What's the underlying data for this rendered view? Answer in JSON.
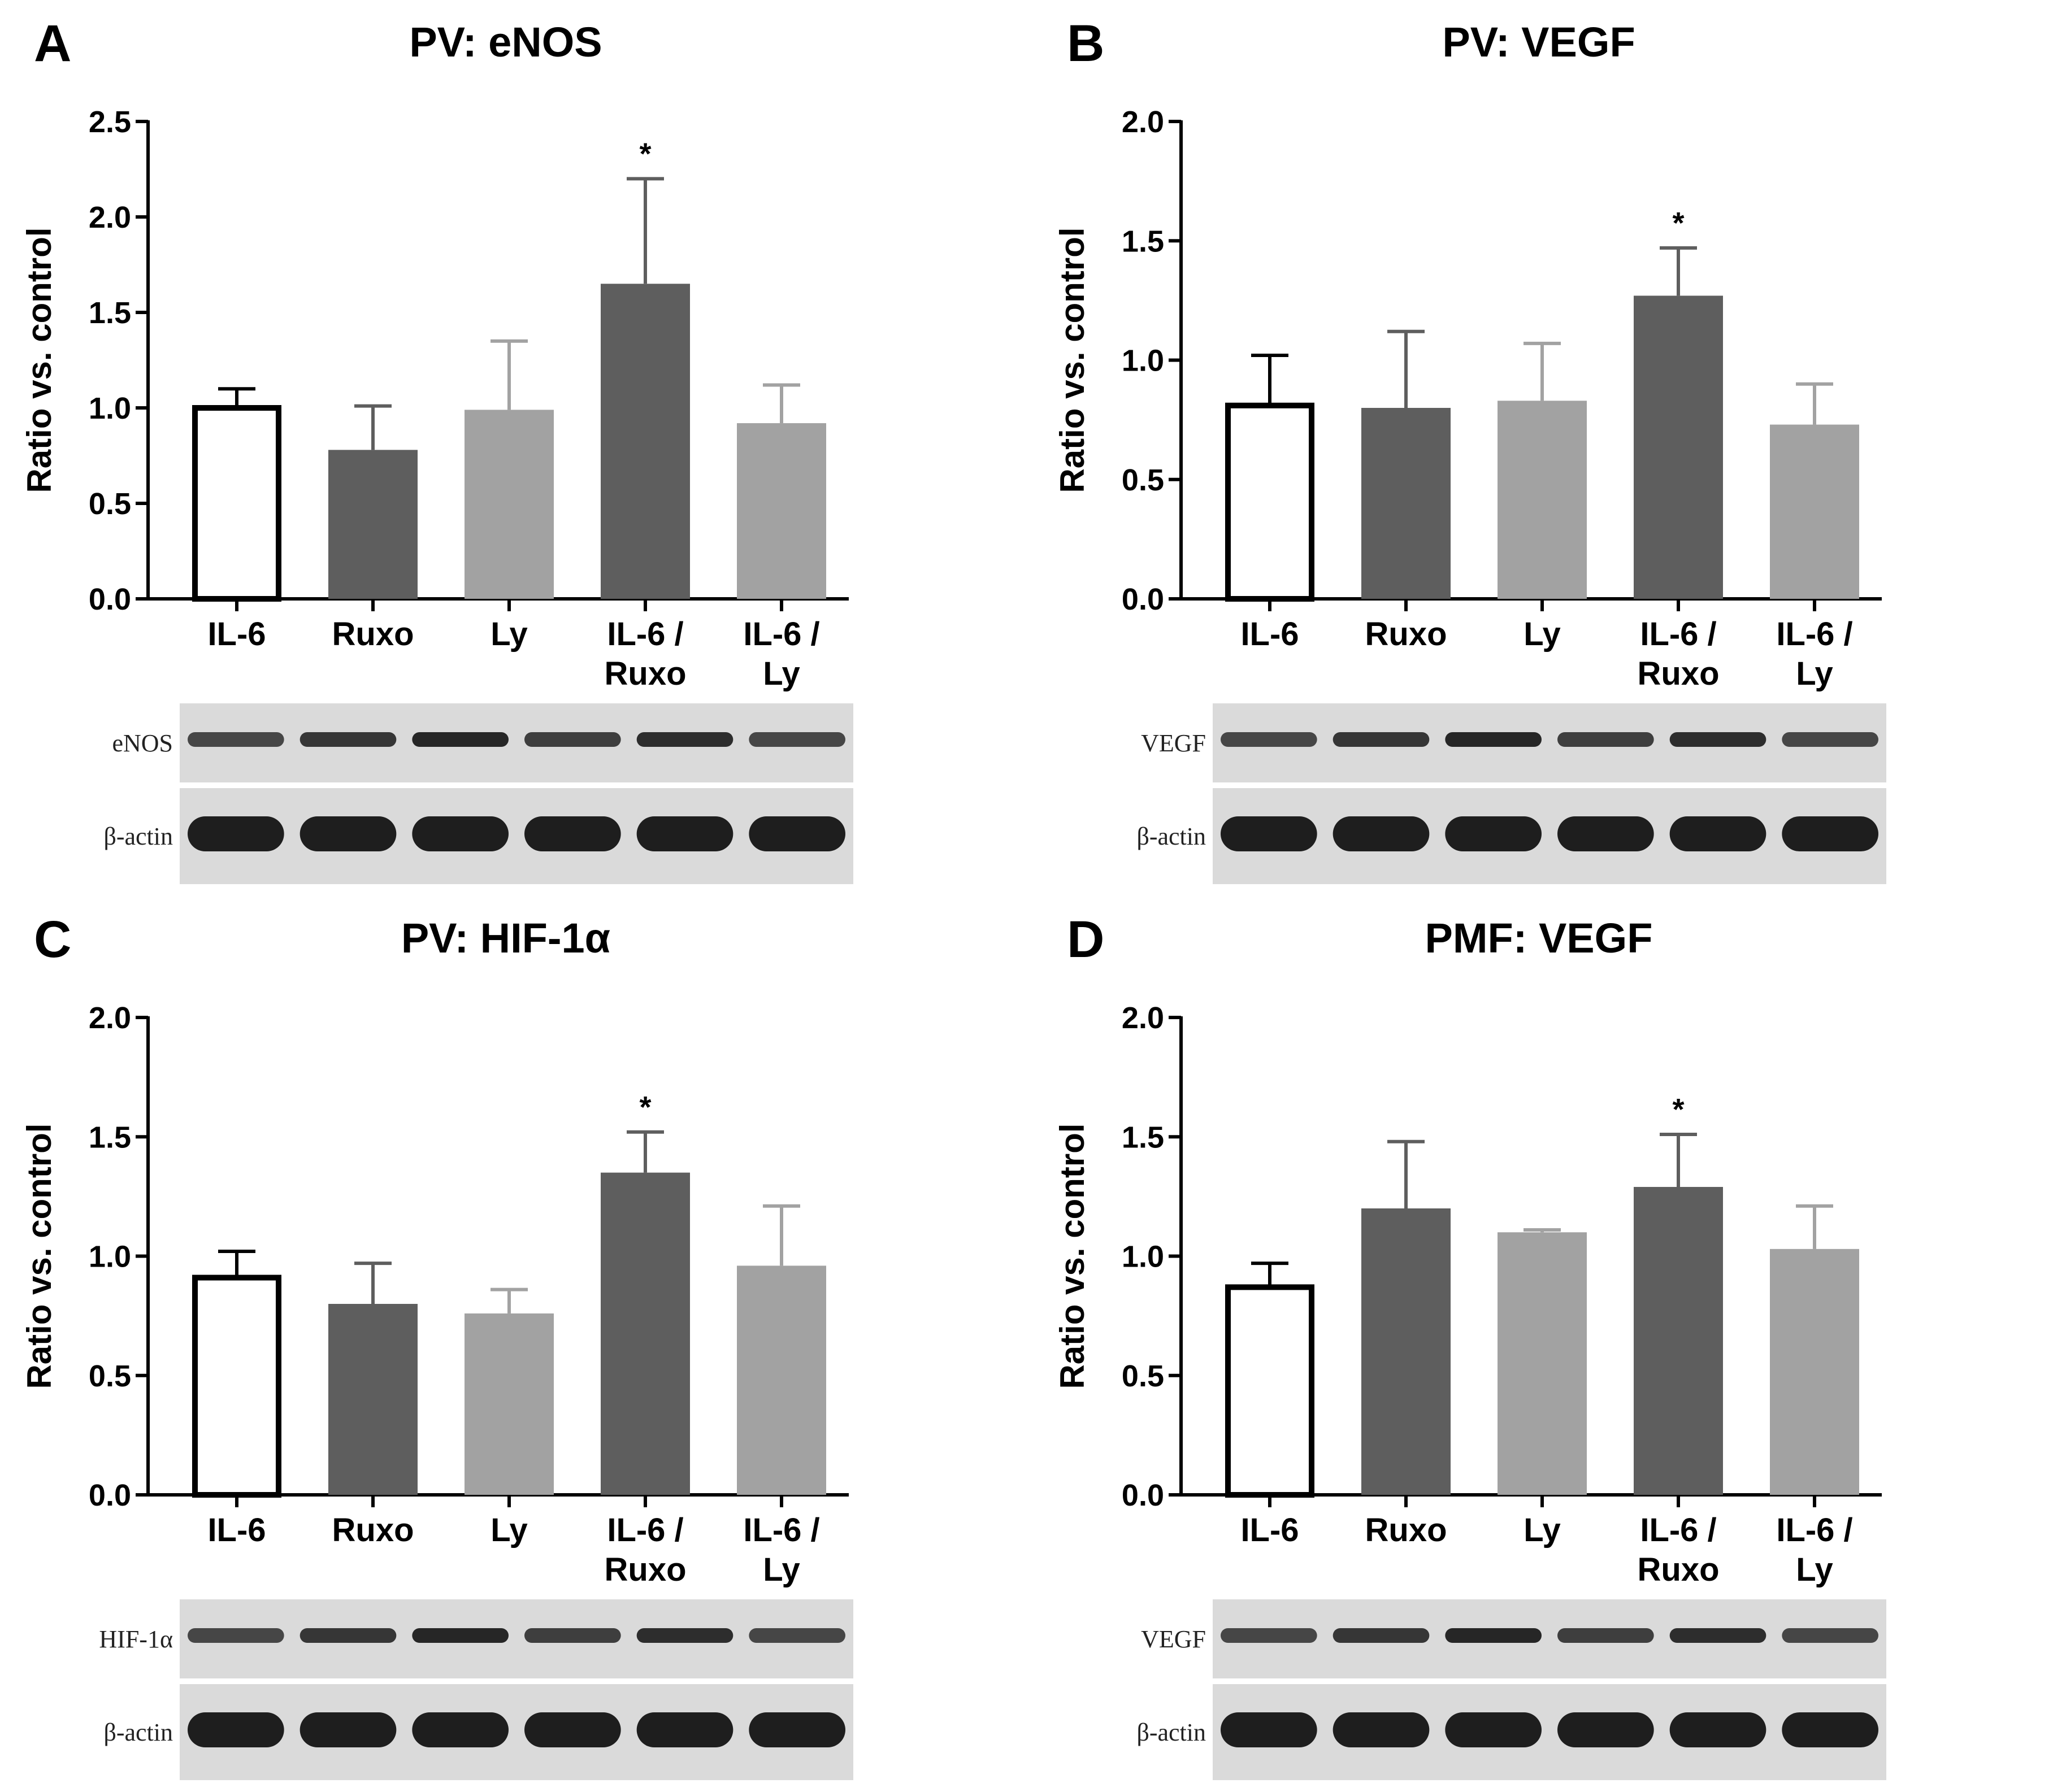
{
  "chart_data": [
    {
      "panel": "A",
      "type": "bar",
      "title": "PV: eNOS",
      "ylabel": "Ratio vs. control",
      "xlabel": "",
      "ylim": [
        0,
        2.5
      ],
      "yticks": [
        "0.0",
        "0.5",
        "1.0",
        "1.5",
        "2.0",
        "2.5"
      ],
      "categories": [
        "IL-6",
        "Ruxo",
        "Ly",
        "IL-6 / Ruxo",
        "IL-6 / Ly"
      ],
      "values": [
        1.0,
        0.78,
        0.99,
        1.65,
        0.92
      ],
      "errors": [
        0.1,
        0.23,
        0.36,
        0.55,
        0.2
      ],
      "significant": [
        false,
        false,
        false,
        true,
        false
      ],
      "bar_colors": [
        "#ffffff",
        "#5e5e5e",
        "#a2a2a2",
        "#5e5e5e",
        "#a2a2a2"
      ],
      "significance_marker": "*",
      "blot_labels": [
        "eNOS",
        "β-actin"
      ]
    },
    {
      "panel": "B",
      "type": "bar",
      "title": "PV: VEGF",
      "ylabel": "Ratio vs. control",
      "xlabel": "",
      "ylim": [
        0,
        2.0
      ],
      "yticks": [
        "0.0",
        "0.5",
        "1.0",
        "1.5",
        "2.0"
      ],
      "categories": [
        "IL-6",
        "Ruxo",
        "Ly",
        "IL-6 / Ruxo",
        "IL-6 / Ly"
      ],
      "values": [
        0.81,
        0.8,
        0.83,
        1.27,
        0.73
      ],
      "errors": [
        0.21,
        0.32,
        0.24,
        0.2,
        0.17
      ],
      "significant": [
        false,
        false,
        false,
        true,
        false
      ],
      "bar_colors": [
        "#ffffff",
        "#5e5e5e",
        "#a2a2a2",
        "#5e5e5e",
        "#a2a2a2"
      ],
      "significance_marker": "*",
      "blot_labels": [
        "VEGF",
        "β-actin"
      ]
    },
    {
      "panel": "C",
      "type": "bar",
      "title": "PV: HIF-1α",
      "ylabel": "Ratio vs. control",
      "xlabel": "",
      "ylim": [
        0,
        2.0
      ],
      "yticks": [
        "0.0",
        "0.5",
        "1.0",
        "1.5",
        "2.0"
      ],
      "categories": [
        "IL-6",
        "Ruxo",
        "Ly",
        "IL-6 / Ruxo",
        "IL-6 / Ly"
      ],
      "values": [
        0.91,
        0.8,
        0.76,
        1.35,
        0.96
      ],
      "errors": [
        0.11,
        0.17,
        0.1,
        0.17,
        0.25
      ],
      "significant": [
        false,
        false,
        false,
        true,
        false
      ],
      "bar_colors": [
        "#ffffff",
        "#5e5e5e",
        "#a2a2a2",
        "#5e5e5e",
        "#a2a2a2"
      ],
      "significance_marker": "*",
      "blot_labels": [
        "HIF-1α",
        "β-actin"
      ]
    },
    {
      "panel": "D",
      "type": "bar",
      "title": "PMF: VEGF",
      "ylabel": "Ratio vs. control",
      "xlabel": "",
      "ylim": [
        0,
        2.0
      ],
      "yticks": [
        "0.0",
        "0.5",
        "1.0",
        "1.5",
        "2.0"
      ],
      "categories": [
        "IL-6",
        "Ruxo",
        "Ly",
        "IL-6 / Ruxo",
        "IL-6 / Ly"
      ],
      "values": [
        0.87,
        1.2,
        1.1,
        1.29,
        1.03
      ],
      "errors": [
        0.1,
        0.28,
        0.01,
        0.22,
        0.18
      ],
      "significant": [
        false,
        false,
        false,
        true,
        false
      ],
      "bar_colors": [
        "#ffffff",
        "#5e5e5e",
        "#a2a2a2",
        "#5e5e5e",
        "#a2a2a2"
      ],
      "significance_marker": "*",
      "blot_labels": [
        "VEGF",
        "β-actin"
      ]
    }
  ]
}
